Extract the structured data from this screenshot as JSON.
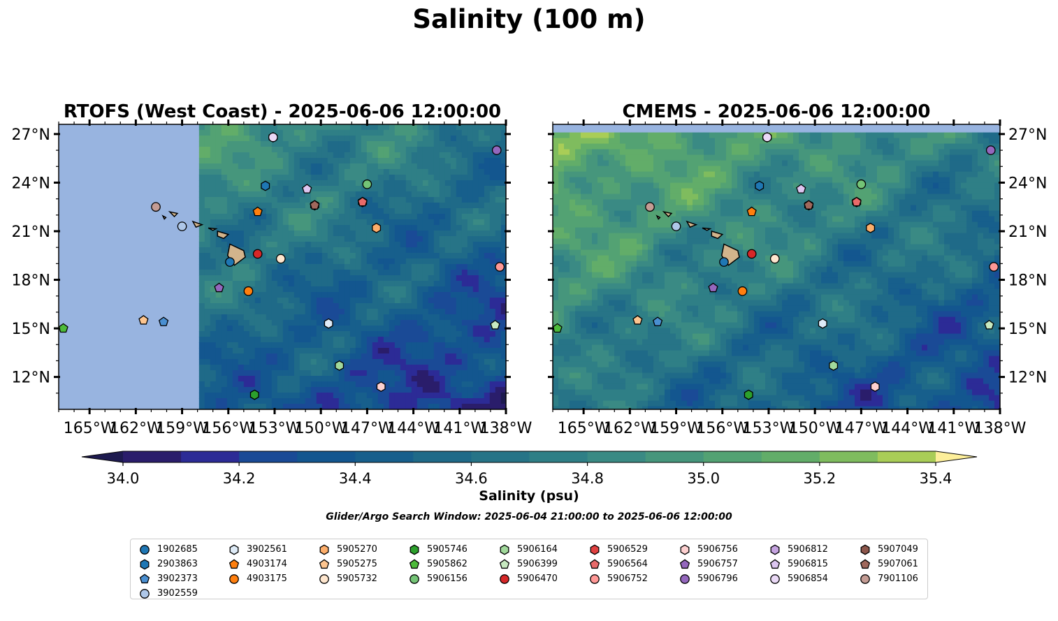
{
  "figure": {
    "title": "Salinity (100 m)",
    "colorbar_label": "Salinity (psu)",
    "search_window": "Glider/Argo Search Window: 2025-06-04 21:00:00 to 2025-06-06 12:00:00"
  },
  "chart_data": {
    "type": "heatmap",
    "variable": "Salinity at 100 m depth",
    "units": "psu",
    "colormap": "haline",
    "colorbar": {
      "ticks": [
        34.0,
        34.2,
        34.4,
        34.6,
        34.8,
        35.0,
        35.2,
        35.4
      ],
      "tick_labels": [
        "34.0",
        "34.2",
        "34.4",
        "34.6",
        "34.8",
        "35.0",
        "35.2",
        "35.4"
      ],
      "levels": [
        34.0,
        34.1,
        34.2,
        34.3,
        34.4,
        34.5,
        34.6,
        34.7,
        34.8,
        34.9,
        35.0,
        35.1,
        35.2,
        35.3,
        35.4
      ],
      "colors": [
        "#2a1d6b",
        "#2c2b96",
        "#1a4a96",
        "#13568f",
        "#175f8c",
        "#1f6a88",
        "#277487",
        "#2f7f86",
        "#3a8a84",
        "#46967c",
        "#53a273",
        "#62ad69",
        "#7fbc5e",
        "#a9cd57",
        "#d2e06a"
      ],
      "extend_low": "#1d1a4f",
      "extend_high": "#fdef9a",
      "orientation": "horizontal"
    },
    "land_color": "#d2b48c",
    "nodata_color": "#98b4e0",
    "panels": [
      {
        "title": "RTOFS (West Coast) - 2025-06-06 12:00:00",
        "source": "RTOFS (West Coast)",
        "time": "2025-06-06 12:00:00",
        "lon_range": [
          -167,
          -138
        ],
        "lat_range": [
          10,
          27.6
        ],
        "model_west_edge_lon": -157.9,
        "lat_ticks": [
          "27°N",
          "24°N",
          "21°N",
          "18°N",
          "15°N",
          "12°N"
        ],
        "lat_tick_values": [
          27,
          24,
          21,
          18,
          15,
          12
        ],
        "lon_ticks": [
          "165°W",
          "162°W",
          "159°W",
          "156°W",
          "153°W",
          "150°W",
          "147°W",
          "144°W",
          "141°W",
          "138°W"
        ],
        "lon_tick_values": [
          -165,
          -162,
          -159,
          -156,
          -153,
          -150,
          -147,
          -144,
          -141,
          -138
        ],
        "lat_labels_side": "left"
      },
      {
        "title": "CMEMS - 2025-06-06 12:00:00",
        "source": "CMEMS",
        "time": "2025-06-06 12:00:00",
        "lon_range": [
          -167,
          -138
        ],
        "lat_range": [
          10,
          27.6
        ],
        "model_north_edge_lat": 27.1,
        "lat_ticks": [
          "27°N",
          "24°N",
          "21°N",
          "18°N",
          "15°N",
          "12°N"
        ],
        "lat_tick_values": [
          27,
          24,
          21,
          18,
          15,
          12
        ],
        "lon_ticks": [
          "165°W",
          "162°W",
          "159°W",
          "156°W",
          "153°W",
          "150°W",
          "147°W",
          "144°W",
          "141°W",
          "138°W"
        ],
        "lon_tick_values": [
          -165,
          -162,
          -159,
          -156,
          -153,
          -150,
          -147,
          -144,
          -141,
          -138
        ],
        "lat_labels_side": "right"
      }
    ],
    "floats": [
      {
        "id": "1902685",
        "marker": "circle",
        "color": "#1f77b4",
        "lon": -155.9,
        "lat": 19.1
      },
      {
        "id": "2903863",
        "marker": "hexagon",
        "color": "#1f77b4",
        "lon": -153.6,
        "lat": 23.8
      },
      {
        "id": "3902373",
        "marker": "pentagon",
        "color": "#4a8fd1",
        "lon": -160.2,
        "lat": 15.4
      },
      {
        "id": "3902559",
        "marker": "circle",
        "color": "#aec7e8",
        "lon": -159.0,
        "lat": 21.3
      },
      {
        "id": "3902561",
        "marker": "hexagon",
        "color": "#deebf7",
        "lon": -149.5,
        "lat": 15.3
      },
      {
        "id": "4903174",
        "marker": "pentagon",
        "color": "#ff7f0e",
        "lon": -154.1,
        "lat": 22.2
      },
      {
        "id": "4903175",
        "marker": "circle",
        "color": "#ff7f0e",
        "lon": -154.7,
        "lat": 17.3
      },
      {
        "id": "5905270",
        "marker": "hexagon",
        "color": "#fdae6b",
        "lon": -146.4,
        "lat": 21.2
      },
      {
        "id": "5905275",
        "marker": "pentagon",
        "color": "#fdc58f",
        "lon": -161.5,
        "lat": 15.5
      },
      {
        "id": "5905732",
        "marker": "circle",
        "color": "#fee6ce",
        "lon": -152.6,
        "lat": 19.3
      },
      {
        "id": "5905746",
        "marker": "hexagon",
        "color": "#2ca02c",
        "lon": -154.3,
        "lat": 10.9
      },
      {
        "id": "5905862",
        "marker": "pentagon",
        "color": "#4dbb3a",
        "lon": -166.7,
        "lat": 15.0
      },
      {
        "id": "5906156",
        "marker": "circle",
        "color": "#74c476",
        "lon": -147.0,
        "lat": 23.9
      },
      {
        "id": "5906164",
        "marker": "hexagon",
        "color": "#a1d99b",
        "lon": -148.8,
        "lat": 12.7
      },
      {
        "id": "5906399",
        "marker": "pentagon",
        "color": "#c7e9c0",
        "lon": -138.7,
        "lat": 15.2
      },
      {
        "id": "5906470",
        "marker": "circle",
        "color": "#d62728",
        "lon": -154.1,
        "lat": 19.6
      },
      {
        "id": "5906529",
        "marker": "hexagon",
        "color": "#e04040",
        "lon": -147.3,
        "lat": 22.8
      },
      {
        "id": "5906564",
        "marker": "pentagon",
        "color": "#e86a6a",
        "lon": -147.3,
        "lat": 22.8
      },
      {
        "id": "5906752",
        "marker": "circle",
        "color": "#ff9896",
        "lon": -138.4,
        "lat": 18.8
      },
      {
        "id": "5906756",
        "marker": "hexagon",
        "color": "#fdd0d0",
        "lon": -146.1,
        "lat": 11.4
      },
      {
        "id": "5906757",
        "marker": "pentagon",
        "color": "#9467bd",
        "lon": -156.6,
        "lat": 17.5
      },
      {
        "id": "5906796",
        "marker": "circle",
        "color": "#9467bd",
        "lon": -138.6,
        "lat": 26.0
      },
      {
        "id": "5906812",
        "marker": "hexagon",
        "color": "#c5a3e0",
        "lon": -153.1,
        "lat": 26.8
      },
      {
        "id": "5906815",
        "marker": "pentagon",
        "color": "#dcc6f0",
        "lon": -150.9,
        "lat": 23.6
      },
      {
        "id": "5906854",
        "marker": "circle",
        "color": "#ead9f6",
        "lon": -153.1,
        "lat": 26.8
      },
      {
        "id": "5907049",
        "marker": "hexagon",
        "color": "#8c564b",
        "lon": -150.4,
        "lat": 22.6
      },
      {
        "id": "5907061",
        "marker": "pentagon",
        "color": "#a0685c",
        "lon": -150.4,
        "lat": 22.6
      },
      {
        "id": "7901106",
        "marker": "circle",
        "color": "#c49c94",
        "lon": -160.7,
        "lat": 22.5
      }
    ],
    "legend": {
      "columns": 9,
      "placement": "bottom-center",
      "ids": [
        "1902685",
        "2903863",
        "3902373",
        "3902559",
        "3902561",
        "4903174",
        "4903175",
        "5905270",
        "5905275",
        "5905732",
        "5905746",
        "5905862",
        "5906156",
        "5906164",
        "5906399",
        "5906470",
        "5906529",
        "5906564",
        "5906752",
        "5906756",
        "5906757",
        "5906796",
        "5906812",
        "5906815",
        "5906854",
        "5907049",
        "5907061",
        "7901106"
      ]
    }
  }
}
